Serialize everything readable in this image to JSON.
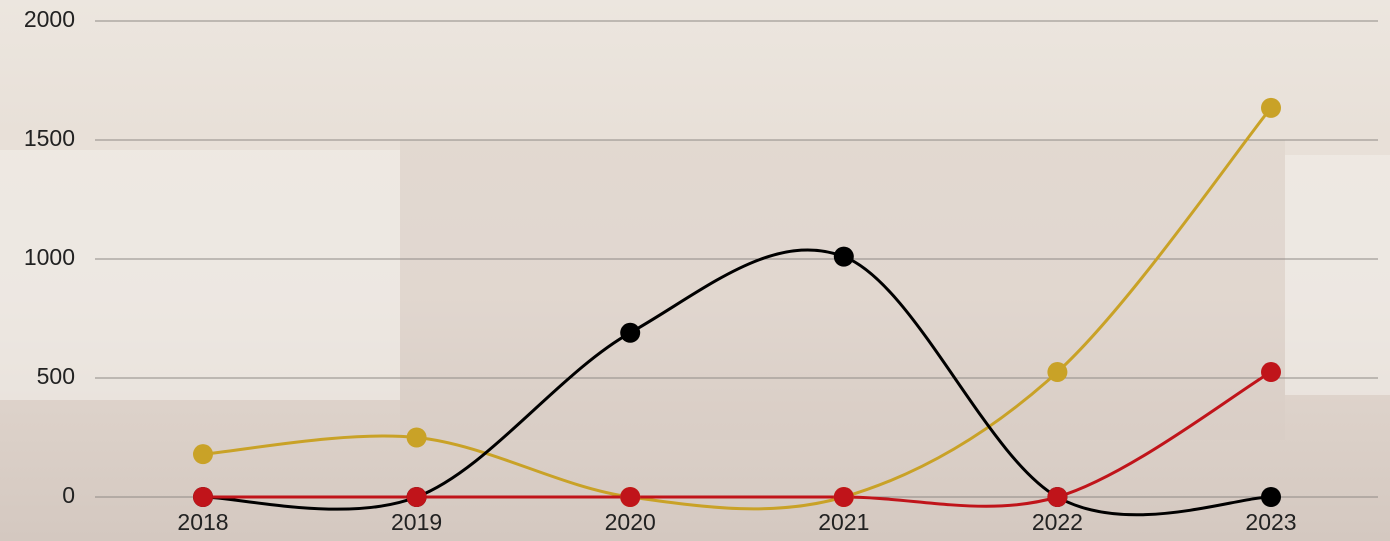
{
  "chart_data": {
    "type": "line",
    "categories": [
      "2018",
      "2019",
      "2020",
      "2021",
      "2022",
      "2023"
    ],
    "series": [
      {
        "color": "#c9a227",
        "values": [
          180,
          250,
          0,
          0,
          525,
          1635
        ]
      },
      {
        "color": "#000000",
        "values": [
          0,
          0,
          690,
          1010,
          0,
          0
        ]
      },
      {
        "color": "#c0141a",
        "values": [
          0,
          0,
          0,
          0,
          0,
          525
        ]
      }
    ],
    "ylim": [
      0,
      2000
    ],
    "yticks": [
      0,
      500,
      1000,
      1500,
      2000
    ],
    "grid": true,
    "smooth": true
  }
}
